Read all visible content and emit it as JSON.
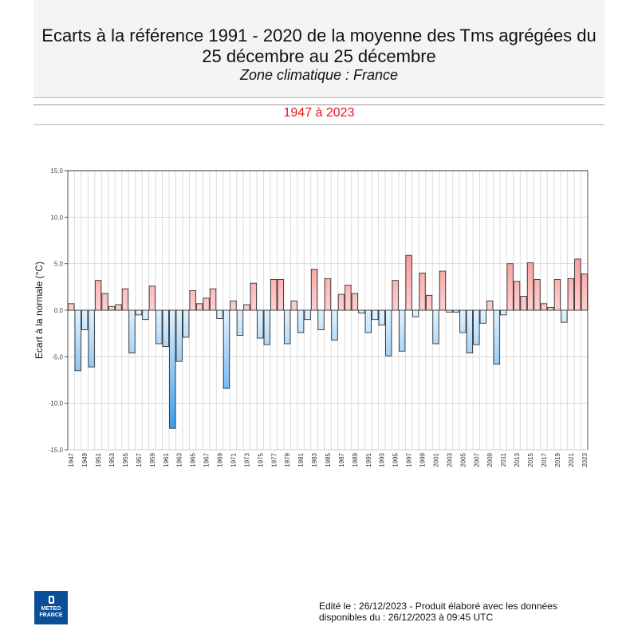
{
  "header": {
    "title_line1": "Ecarts à la référence 1991 - 2020 de la moyenne des Tms agrégées du",
    "title_line2": "25 décembre au 25 décembre",
    "subtitle": "Zone climatique : France",
    "period": "1947 à 2023"
  },
  "chart_data": {
    "type": "bar",
    "title": "",
    "xlabel": "",
    "ylabel": "Ecart à la normale (°C)",
    "ylim": [
      -15,
      15
    ],
    "yticks": [
      "15.0",
      "10.0",
      "5.0",
      "0.0",
      "-5.0",
      "-10.0",
      "-15.0"
    ],
    "grid": true,
    "colors": {
      "positive": "#f47a7a",
      "negative": "#3399ee"
    },
    "categories": [
      1947,
      1948,
      1949,
      1950,
      1951,
      1952,
      1953,
      1954,
      1955,
      1956,
      1957,
      1958,
      1959,
      1960,
      1961,
      1962,
      1963,
      1964,
      1965,
      1966,
      1967,
      1968,
      1969,
      1970,
      1971,
      1972,
      1973,
      1974,
      1975,
      1976,
      1977,
      1978,
      1979,
      1980,
      1981,
      1982,
      1983,
      1984,
      1985,
      1986,
      1987,
      1988,
      1989,
      1990,
      1991,
      1992,
      1993,
      1994,
      1995,
      1996,
      1997,
      1998,
      1999,
      2000,
      2001,
      2002,
      2003,
      2004,
      2005,
      2006,
      2007,
      2008,
      2009,
      2010,
      2011,
      2012,
      2013,
      2014,
      2015,
      2016,
      2017,
      2018,
      2019,
      2020,
      2021,
      2022,
      2023
    ],
    "values": [
      0.7,
      -6.5,
      -2.1,
      -6.1,
      3.2,
      1.8,
      0.4,
      0.6,
      2.3,
      -4.6,
      -0.5,
      -1.0,
      2.6,
      -3.6,
      -3.9,
      -12.7,
      -5.5,
      -2.9,
      2.1,
      0.7,
      1.3,
      2.3,
      -0.9,
      -8.4,
      1.0,
      -2.7,
      0.6,
      2.9,
      -3.0,
      -3.7,
      3.3,
      3.3,
      -3.6,
      1.0,
      -2.4,
      -1.0,
      4.4,
      -2.1,
      3.4,
      -3.2,
      1.7,
      2.7,
      1.8,
      -0.3,
      -2.4,
      -1.0,
      -1.6,
      -4.9,
      3.2,
      -4.4,
      5.9,
      -0.7,
      4.0,
      1.6,
      -3.6,
      4.2,
      -0.2,
      -0.2,
      -2.4,
      -4.6,
      -3.7,
      -1.4,
      1.0,
      -5.8,
      -0.5,
      5.0,
      3.1,
      1.5,
      5.1,
      3.3,
      0.7,
      0.3,
      3.3,
      -1.3,
      3.4,
      5.5,
      3.9
    ]
  },
  "logo": {
    "line1": "METEO",
    "line2": "FRANCE"
  },
  "footer": {
    "line1": "Edité le : 26/12/2023 - Produit élaboré avec les données",
    "line2": "disponibles du : 26/12/2023 à 09:45 UTC"
  }
}
